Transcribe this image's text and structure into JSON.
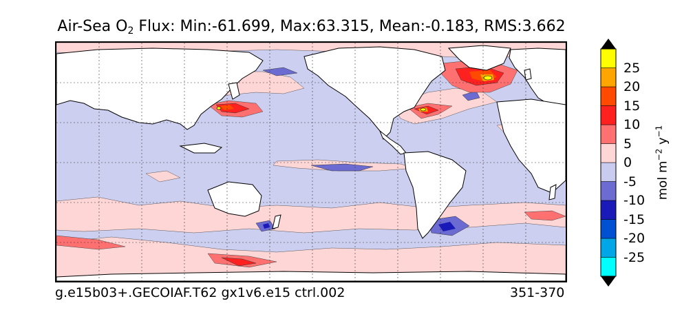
{
  "title": {
    "prefix": "Air-Sea O",
    "subscript": "2",
    "rest": " Flux: Min:-61.699, Max:63.315, Mean:-0.183, RMS:3.662"
  },
  "footer": {
    "case_name": "g.e15b03+.GECOIAF.T62 gx1v6.e15 ctrl.002",
    "year_range": "351-370"
  },
  "colorbar": {
    "unit_label": "mol m⁻² y⁻¹",
    "levels": [
      {
        "range": [
          -30,
          -25
        ],
        "color": "#00ffff"
      },
      {
        "range": [
          -25,
          -20
        ],
        "color": "#00a6e6"
      },
      {
        "range": [
          -20,
          -15
        ],
        "color": "#0050d2"
      },
      {
        "range": [
          -15,
          -10
        ],
        "color": "#1a1ab8"
      },
      {
        "range": [
          -10,
          -5
        ],
        "color": "#6b6bd1"
      },
      {
        "range": [
          -5,
          0
        ],
        "color": "#c9cbef"
      },
      {
        "range": [
          0,
          5
        ],
        "color": "#ffd6d6"
      },
      {
        "range": [
          5,
          10
        ],
        "color": "#ff7070"
      },
      {
        "range": [
          10,
          15
        ],
        "color": "#ff2020"
      },
      {
        "range": [
          15,
          20
        ],
        "color": "#ff4a00"
      },
      {
        "range": [
          20,
          25
        ],
        "color": "#ffa500"
      },
      {
        "range": [
          25,
          30
        ],
        "color": "#ffff00"
      }
    ],
    "ticks": [
      {
        "value": 25,
        "label": "25"
      },
      {
        "value": 20,
        "label": "20"
      },
      {
        "value": 15,
        "label": "15"
      },
      {
        "value": 10,
        "label": "10"
      },
      {
        "value": 5,
        "label": "5"
      },
      {
        "value": 0,
        "label": "0"
      },
      {
        "value": -5,
        "label": "-5"
      },
      {
        "value": -10,
        "label": "-10"
      },
      {
        "value": -15,
        "label": "-15"
      },
      {
        "value": -20,
        "label": "-20"
      },
      {
        "value": -25,
        "label": "-25"
      }
    ],
    "extend": "both"
  },
  "map": {
    "grid": "dotted",
    "land_color": "#ffffff",
    "coastline_color": "#000000"
  }
}
